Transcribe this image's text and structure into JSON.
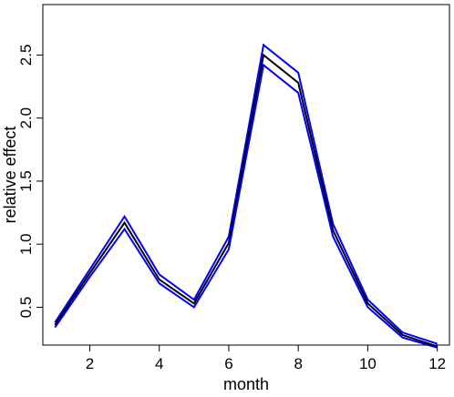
{
  "chart_data": {
    "type": "line",
    "title": "",
    "xlabel": "month",
    "ylabel": "relative effect",
    "x": [
      1,
      2,
      3,
      4,
      5,
      6,
      7,
      8,
      9,
      10,
      11,
      12
    ],
    "xlim": [
      0.65,
      12.35
    ],
    "ylim": [
      0.2,
      2.9
    ],
    "x_ticks": [
      2,
      4,
      6,
      8,
      10,
      12
    ],
    "y_ticks": [
      0.5,
      1.0,
      1.5,
      2.0,
      2.5
    ],
    "x_tick_labels": [
      "2",
      "4",
      "6",
      "8",
      "10",
      "12"
    ],
    "y_tick_labels": [
      "0.5",
      "1.0",
      "1.5",
      "2.0",
      "2.5"
    ],
    "grid": false,
    "legend": "none",
    "series": [
      {
        "color": "#0000ff",
        "values": [
          0.38,
          0.8,
          1.22,
          0.76,
          0.56,
          1.06,
          2.58,
          2.36,
          1.16,
          0.56,
          0.3,
          0.21
        ]
      },
      {
        "color": "#000000",
        "values": [
          0.36,
          0.77,
          1.17,
          0.72,
          0.53,
          1.01,
          2.5,
          2.28,
          1.11,
          0.53,
          0.28,
          0.19
        ]
      },
      {
        "color": "#0000ff",
        "values": [
          0.34,
          0.74,
          1.12,
          0.69,
          0.5,
          0.96,
          2.42,
          2.2,
          1.06,
          0.5,
          0.26,
          0.18
        ]
      }
    ]
  }
}
